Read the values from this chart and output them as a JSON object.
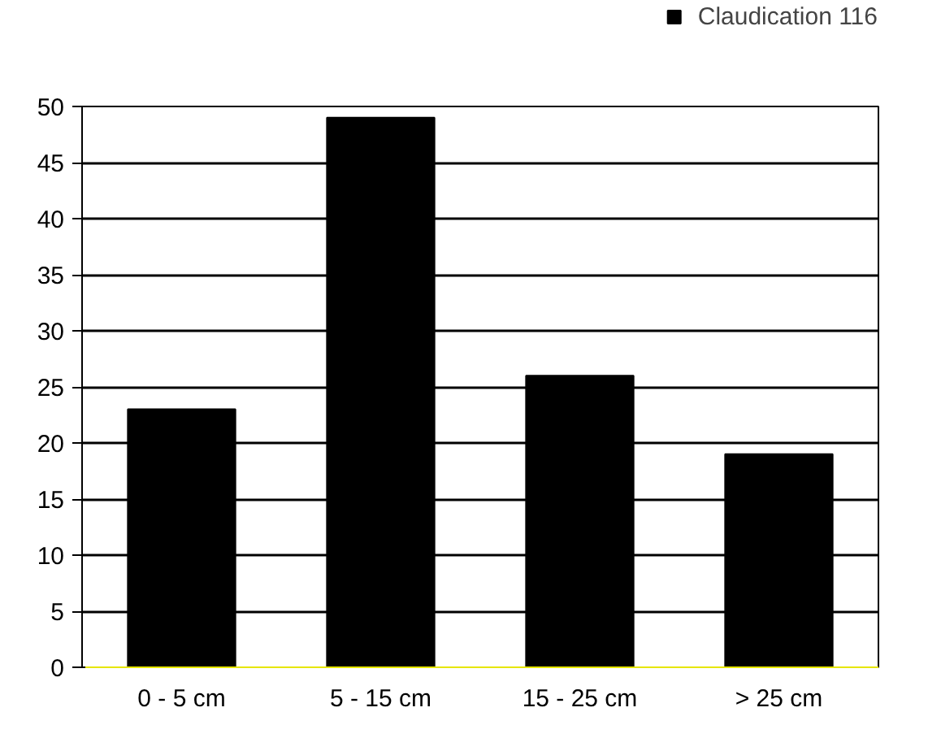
{
  "chart_data": {
    "type": "bar",
    "categories": [
      "0 - 5 cm",
      "5 - 15 cm",
      "15 - 25 cm",
      "> 25 cm"
    ],
    "series": [
      {
        "name": "Claudication 116",
        "color": "#000000",
        "values": [
          23,
          49,
          26,
          19
        ]
      }
    ],
    "ylim": [
      0,
      50
    ],
    "yticks": [
      0,
      5,
      10,
      15,
      20,
      25,
      30,
      35,
      40,
      45,
      50
    ],
    "grid": "y",
    "legend": "top right"
  }
}
